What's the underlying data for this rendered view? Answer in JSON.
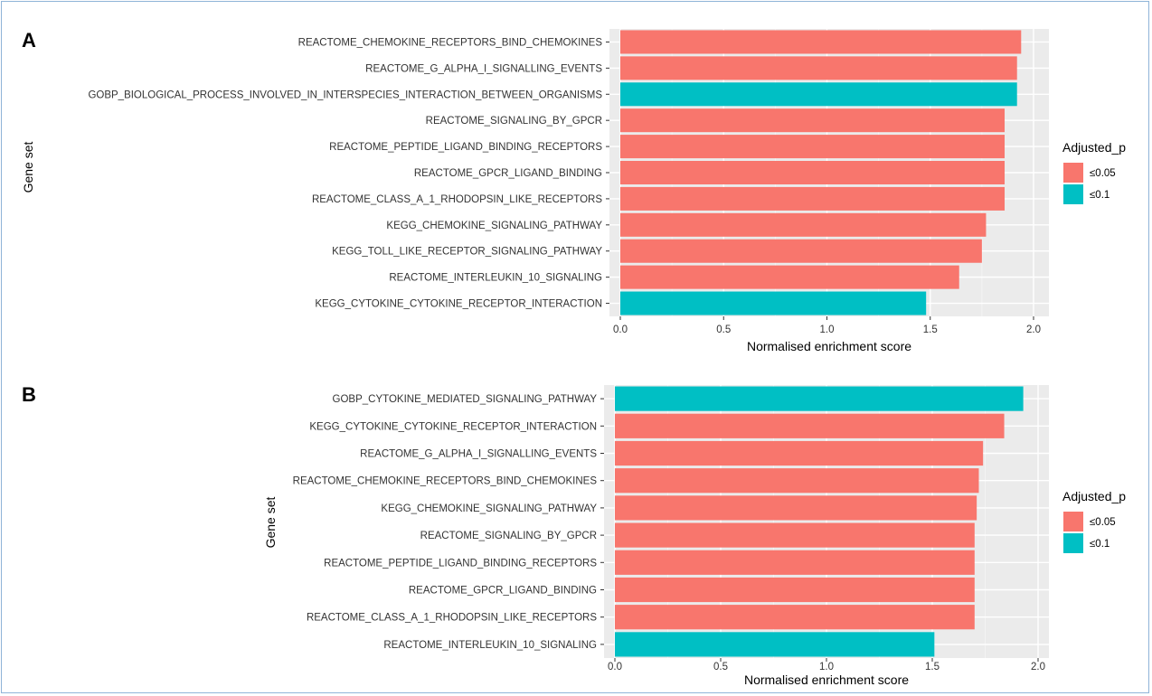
{
  "colors": {
    "sig005": "#f8766d",
    "sig01": "#00bfc4",
    "panel_bg": "#ebebeb",
    "grid_major": "#ffffff",
    "grid_minor": "#f5f5f5"
  },
  "chart_data": [
    {
      "type": "bar",
      "orientation": "horizontal",
      "panel_label": "A",
      "xlabel": "Normalised enrichment score",
      "ylabel": "Gene set",
      "xlim": [
        0,
        2.0
      ],
      "xticks": [
        "0.0",
        "0.5",
        "1.0",
        "1.5",
        "2.0"
      ],
      "legend": {
        "title": "Adjusted_p",
        "position": "right",
        "entries": [
          {
            "label": "≤0.05",
            "key": "sig005"
          },
          {
            "label": "≤0.1",
            "key": "sig01"
          }
        ]
      },
      "categories": [
        "REACTOME_CHEMOKINE_RECEPTORS_BIND_CHEMOKINES",
        "REACTOME_G_ALPHA_I_SIGNALLING_EVENTS",
        "GOBP_BIOLOGICAL_PROCESS_INVOLVED_IN_INTERSPECIES_INTERACTION_BETWEEN_ORGANISMS",
        "REACTOME_SIGNALING_BY_GPCR",
        "REACTOME_PEPTIDE_LIGAND_BINDING_RECEPTORS",
        "REACTOME_GPCR_LIGAND_BINDING",
        "REACTOME_CLASS_A_1_RHODOPSIN_LIKE_RECEPTORS",
        "KEGG_CHEMOKINE_SIGNALING_PATHWAY",
        "KEGG_TOLL_LIKE_RECEPTOR_SIGNALING_PATHWAY",
        "REACTOME_INTERLEUKIN_10_SIGNALING",
        "KEGG_CYTOKINE_CYTOKINE_RECEPTOR_INTERACTION"
      ],
      "values": [
        1.94,
        1.92,
        1.92,
        1.86,
        1.86,
        1.86,
        1.86,
        1.77,
        1.75,
        1.64,
        1.48
      ],
      "groups": [
        "sig005",
        "sig005",
        "sig01",
        "sig005",
        "sig005",
        "sig005",
        "sig005",
        "sig005",
        "sig005",
        "sig005",
        "sig01"
      ]
    },
    {
      "type": "bar",
      "orientation": "horizontal",
      "panel_label": "B",
      "xlabel": "Normalised enrichment score",
      "ylabel": "Gene set",
      "xlim": [
        0,
        2.0
      ],
      "xticks": [
        "0.0",
        "0.5",
        "1.0",
        "1.5",
        "2.0"
      ],
      "legend": {
        "title": "Adjusted_p",
        "position": "right",
        "entries": [
          {
            "label": "≤0.05",
            "key": "sig005"
          },
          {
            "label": "≤0.1",
            "key": "sig01"
          }
        ]
      },
      "categories": [
        "GOBP_CYTOKINE_MEDIATED_SIGNALING_PATHWAY",
        "KEGG_CYTOKINE_CYTOKINE_RECEPTOR_INTERACTION",
        "REACTOME_G_ALPHA_I_SIGNALLING_EVENTS",
        "REACTOME_CHEMOKINE_RECEPTORS_BIND_CHEMOKINES",
        "KEGG_CHEMOKINE_SIGNALING_PATHWAY",
        "REACTOME_SIGNALING_BY_GPCR",
        "REACTOME_PEPTIDE_LIGAND_BINDING_RECEPTORS",
        "REACTOME_GPCR_LIGAND_BINDING",
        "REACTOME_CLASS_A_1_RHODOPSIN_LIKE_RECEPTORS",
        "REACTOME_INTERLEUKIN_10_SIGNALING"
      ],
      "values": [
        1.93,
        1.84,
        1.74,
        1.72,
        1.71,
        1.7,
        1.7,
        1.7,
        1.7,
        1.51
      ],
      "groups": [
        "sig01",
        "sig005",
        "sig005",
        "sig005",
        "sig005",
        "sig005",
        "sig005",
        "sig005",
        "sig005",
        "sig01"
      ]
    }
  ]
}
